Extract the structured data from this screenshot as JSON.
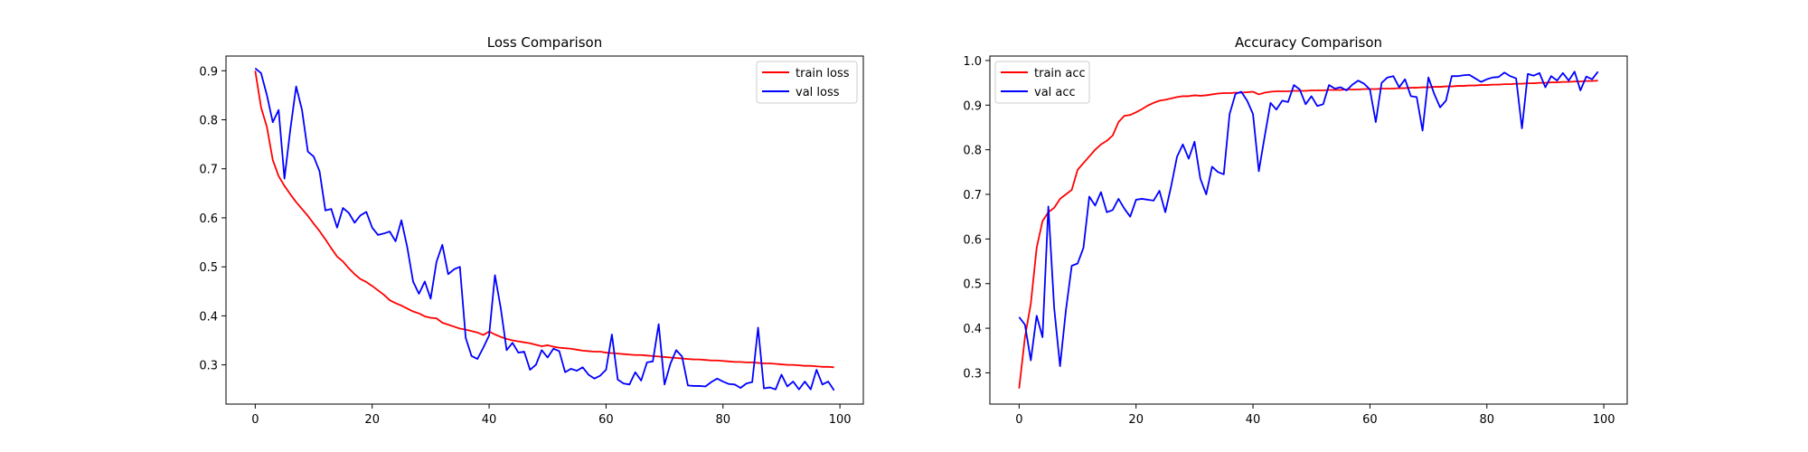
{
  "chart_data": [
    {
      "type": "line",
      "title": "Loss Comparison",
      "xlabel": "",
      "ylabel": "",
      "xlim": [
        -5,
        104
      ],
      "ylim": [
        0.22,
        0.93
      ],
      "xticks": [
        0,
        20,
        40,
        60,
        80,
        100
      ],
      "yticks": [
        0.3,
        0.4,
        0.5,
        0.6,
        0.7,
        0.8,
        0.9
      ],
      "grid": false,
      "legend_position": "top-right",
      "series": [
        {
          "name": "train loss",
          "color": "#ff0000",
          "values": [
            0.9,
            0.825,
            0.785,
            0.718,
            0.685,
            0.665,
            0.648,
            0.632,
            0.618,
            0.604,
            0.588,
            0.573,
            0.556,
            0.538,
            0.521,
            0.511,
            0.497,
            0.485,
            0.475,
            0.469,
            0.461,
            0.452,
            0.443,
            0.432,
            0.426,
            0.421,
            0.415,
            0.409,
            0.405,
            0.399,
            0.396,
            0.395,
            0.386,
            0.382,
            0.378,
            0.374,
            0.372,
            0.369,
            0.366,
            0.361,
            0.368,
            0.362,
            0.357,
            0.353,
            0.35,
            0.348,
            0.346,
            0.344,
            0.341,
            0.338,
            0.34,
            0.337,
            0.335,
            0.334,
            0.333,
            0.331,
            0.329,
            0.328,
            0.327,
            0.327,
            0.325,
            0.324,
            0.323,
            0.322,
            0.321,
            0.32,
            0.32,
            0.319,
            0.318,
            0.317,
            0.316,
            0.315,
            0.314,
            0.313,
            0.312,
            0.311,
            0.311,
            0.31,
            0.309,
            0.309,
            0.308,
            0.307,
            0.306,
            0.306,
            0.305,
            0.305,
            0.304,
            0.303,
            0.303,
            0.302,
            0.301,
            0.3,
            0.3,
            0.299,
            0.298,
            0.298,
            0.297,
            0.296,
            0.296,
            0.295
          ]
        },
        {
          "name": "val loss",
          "color": "#0000ff",
          "values": [
            0.905,
            0.895,
            0.85,
            0.795,
            0.82,
            0.68,
            0.78,
            0.868,
            0.82,
            0.735,
            0.725,
            0.695,
            0.615,
            0.618,
            0.58,
            0.62,
            0.61,
            0.59,
            0.605,
            0.612,
            0.58,
            0.565,
            0.568,
            0.572,
            0.552,
            0.595,
            0.54,
            0.47,
            0.445,
            0.47,
            0.435,
            0.51,
            0.545,
            0.485,
            0.495,
            0.5,
            0.355,
            0.318,
            0.312,
            0.335,
            0.36,
            0.483,
            0.415,
            0.33,
            0.345,
            0.325,
            0.327,
            0.29,
            0.3,
            0.33,
            0.315,
            0.333,
            0.328,
            0.285,
            0.292,
            0.288,
            0.295,
            0.28,
            0.272,
            0.278,
            0.29,
            0.362,
            0.27,
            0.262,
            0.26,
            0.285,
            0.268,
            0.305,
            0.307,
            0.383,
            0.26,
            0.302,
            0.33,
            0.317,
            0.258,
            0.257,
            0.257,
            0.256,
            0.265,
            0.272,
            0.266,
            0.261,
            0.26,
            0.253,
            0.262,
            0.265,
            0.376,
            0.252,
            0.254,
            0.25,
            0.28,
            0.256,
            0.266,
            0.25,
            0.266,
            0.25,
            0.29,
            0.26,
            0.266,
            0.248
          ]
        }
      ]
    },
    {
      "type": "line",
      "title": "Accuracy Comparison",
      "xlabel": "",
      "ylabel": "",
      "xlim": [
        -5,
        104
      ],
      "ylim": [
        0.23,
        1.01
      ],
      "xticks": [
        0,
        20,
        40,
        60,
        80,
        100
      ],
      "yticks": [
        0.3,
        0.4,
        0.5,
        0.6,
        0.7,
        0.8,
        0.9,
        1.0
      ],
      "grid": false,
      "legend_position": "top-left",
      "series": [
        {
          "name": "train acc",
          "color": "#ff0000",
          "values": [
            0.265,
            0.38,
            0.455,
            0.58,
            0.64,
            0.66,
            0.67,
            0.69,
            0.7,
            0.71,
            0.755,
            0.77,
            0.785,
            0.8,
            0.812,
            0.82,
            0.832,
            0.862,
            0.876,
            0.878,
            0.884,
            0.891,
            0.899,
            0.905,
            0.91,
            0.912,
            0.915,
            0.918,
            0.92,
            0.92,
            0.922,
            0.921,
            0.922,
            0.924,
            0.926,
            0.927,
            0.927,
            0.928,
            0.928,
            0.929,
            0.93,
            0.924,
            0.928,
            0.93,
            0.931,
            0.931,
            0.931,
            0.932,
            0.932,
            0.932,
            0.933,
            0.933,
            0.933,
            0.934,
            0.934,
            0.934,
            0.935,
            0.935,
            0.935,
            0.936,
            0.936,
            0.936,
            0.937,
            0.937,
            0.937,
            0.938,
            0.938,
            0.939,
            0.939,
            0.94,
            0.94,
            0.941,
            0.941,
            0.942,
            0.942,
            0.943,
            0.943,
            0.944,
            0.944,
            0.945,
            0.945,
            0.946,
            0.946,
            0.947,
            0.947,
            0.948,
            0.948,
            0.949,
            0.949,
            0.95,
            0.95,
            0.951,
            0.951,
            0.952,
            0.952,
            0.953,
            0.953,
            0.954,
            0.954,
            0.955
          ]
        },
        {
          "name": "val acc",
          "color": "#0000ff",
          "values": [
            0.425,
            0.408,
            0.328,
            0.428,
            0.38,
            0.673,
            0.445,
            0.315,
            0.44,
            0.54,
            0.545,
            0.58,
            0.695,
            0.675,
            0.705,
            0.66,
            0.665,
            0.69,
            0.668,
            0.65,
            0.688,
            0.69,
            0.688,
            0.686,
            0.708,
            0.66,
            0.718,
            0.784,
            0.812,
            0.78,
            0.818,
            0.735,
            0.7,
            0.762,
            0.75,
            0.745,
            0.88,
            0.925,
            0.93,
            0.91,
            0.88,
            0.752,
            0.83,
            0.905,
            0.89,
            0.91,
            0.907,
            0.945,
            0.935,
            0.902,
            0.92,
            0.898,
            0.902,
            0.945,
            0.937,
            0.94,
            0.933,
            0.946,
            0.955,
            0.948,
            0.935,
            0.862,
            0.95,
            0.962,
            0.965,
            0.94,
            0.958,
            0.92,
            0.918,
            0.843,
            0.962,
            0.925,
            0.895,
            0.91,
            0.965,
            0.965,
            0.967,
            0.968,
            0.96,
            0.952,
            0.958,
            0.962,
            0.963,
            0.973,
            0.965,
            0.96,
            0.848,
            0.97,
            0.966,
            0.972,
            0.94,
            0.965,
            0.955,
            0.972,
            0.955,
            0.975,
            0.933,
            0.964,
            0.958,
            0.975
          ]
        }
      ]
    }
  ]
}
